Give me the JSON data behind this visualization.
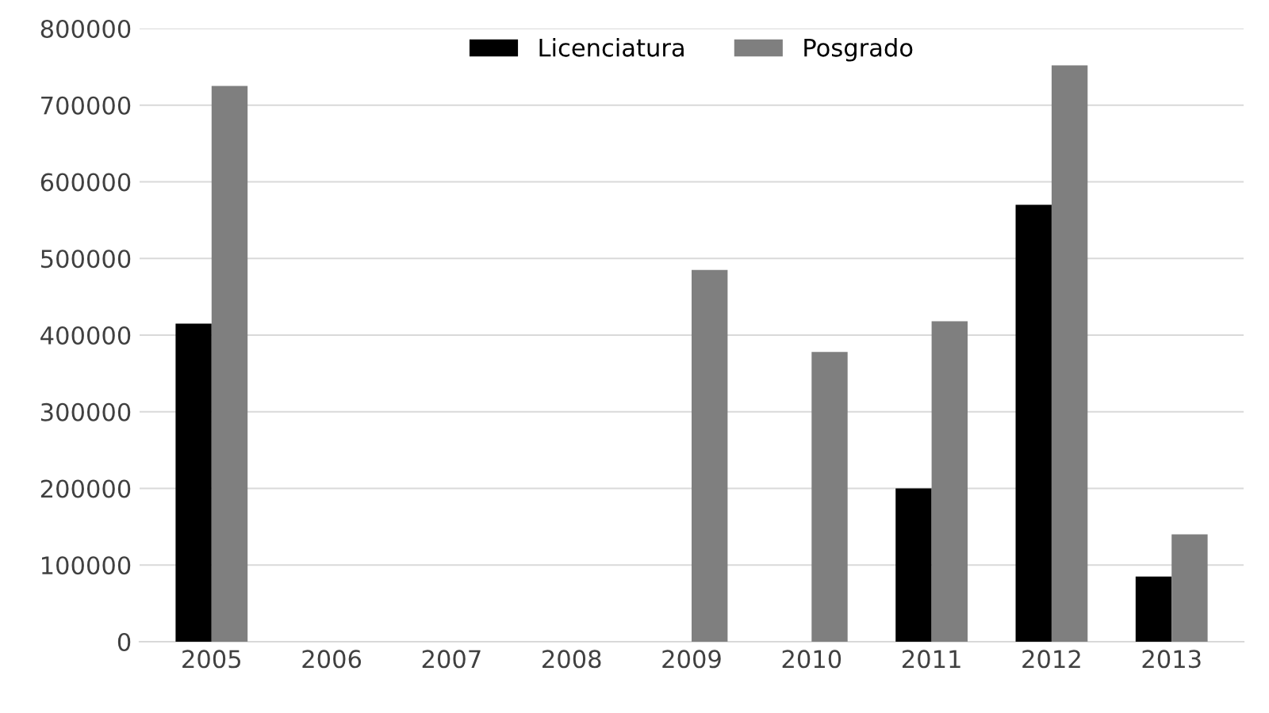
{
  "chart_data": {
    "type": "bar",
    "categories": [
      "2005",
      "2006",
      "2007",
      "2008",
      "2009",
      "2010",
      "2011",
      "2012",
      "2013"
    ],
    "series": [
      {
        "name": "Licenciatura",
        "color": "#000000",
        "values": [
          415000,
          0,
          0,
          0,
          0,
          0,
          200000,
          570000,
          85000
        ]
      },
      {
        "name": "Posgrado",
        "color": "#7f7f7f",
        "values": [
          725000,
          0,
          0,
          0,
          485000,
          378000,
          418000,
          752000,
          140000
        ]
      }
    ],
    "ylim": [
      0,
      800000
    ],
    "yticks": [
      0,
      100000,
      200000,
      300000,
      400000,
      500000,
      600000,
      700000,
      800000
    ],
    "grid": "y",
    "legend": "top"
  }
}
